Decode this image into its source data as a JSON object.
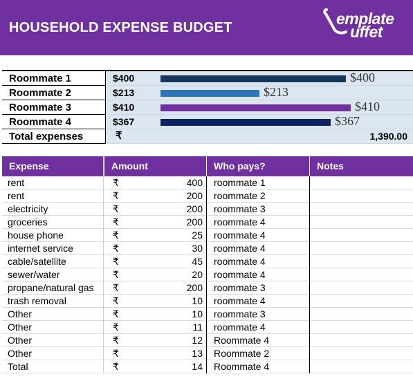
{
  "header": {
    "title": "HOUSEHOLD EXPENSE BUDGET",
    "logo_line1": "emplate",
    "logo_line2": "uffet",
    "color": "#7030a0"
  },
  "summary": {
    "rows": [
      {
        "name": "Roommate 1",
        "amount": "$400",
        "bar_label": "$400",
        "value": 400,
        "color": "#17375e"
      },
      {
        "name": "Roommate 2",
        "amount": "$213",
        "bar_label": "$213",
        "value": 213,
        "color": "#2e75b6"
      },
      {
        "name": "Roommate 3",
        "amount": "$410",
        "bar_label": "$410",
        "value": 410,
        "color": "#7030a0"
      },
      {
        "name": "Roommate 4",
        "amount": "$367",
        "bar_label": "$367",
        "value": 367,
        "color": "#0d2260"
      }
    ],
    "total_label": "Total expenses",
    "total_currency": "₹",
    "total_value": "1,390.00"
  },
  "expenses": {
    "headers": {
      "expense": "Expense",
      "amount": "Amount",
      "who": "Who pays?",
      "notes": "Notes"
    },
    "currency": "₹",
    "rows": [
      {
        "expense": "rent",
        "amount": "400",
        "who": "roommate 1"
      },
      {
        "expense": "rent",
        "amount": "200",
        "who": "roommate 2"
      },
      {
        "expense": "electricity",
        "amount": "200",
        "who": "roommate 3"
      },
      {
        "expense": "groceries",
        "amount": "200",
        "who": "roommate 4"
      },
      {
        "expense": "house phone",
        "amount": "25",
        "who": "roommate 4"
      },
      {
        "expense": "internet service",
        "amount": "30",
        "who": "roommate 4"
      },
      {
        "expense": "cable/satellite",
        "amount": "45",
        "who": "roommate 4"
      },
      {
        "expense": "sewer/water",
        "amount": "20",
        "who": "roommate 4"
      },
      {
        "expense": "propane/natural gas",
        "amount": "200",
        "who": "roommate 3"
      },
      {
        "expense": "trash removal",
        "amount": "10",
        "who": "roommate 4"
      },
      {
        "expense": "Other",
        "amount": "10",
        "who": "roommate 3"
      },
      {
        "expense": "Other",
        "amount": "11",
        "who": "roommate 4"
      },
      {
        "expense": "Other",
        "amount": "12",
        "who": "Roommate 4"
      },
      {
        "expense": "Other",
        "amount": "13",
        "who": "Roommate 2"
      },
      {
        "expense": "Total",
        "amount": "14",
        "who": "Roommate 4"
      }
    ]
  }
}
